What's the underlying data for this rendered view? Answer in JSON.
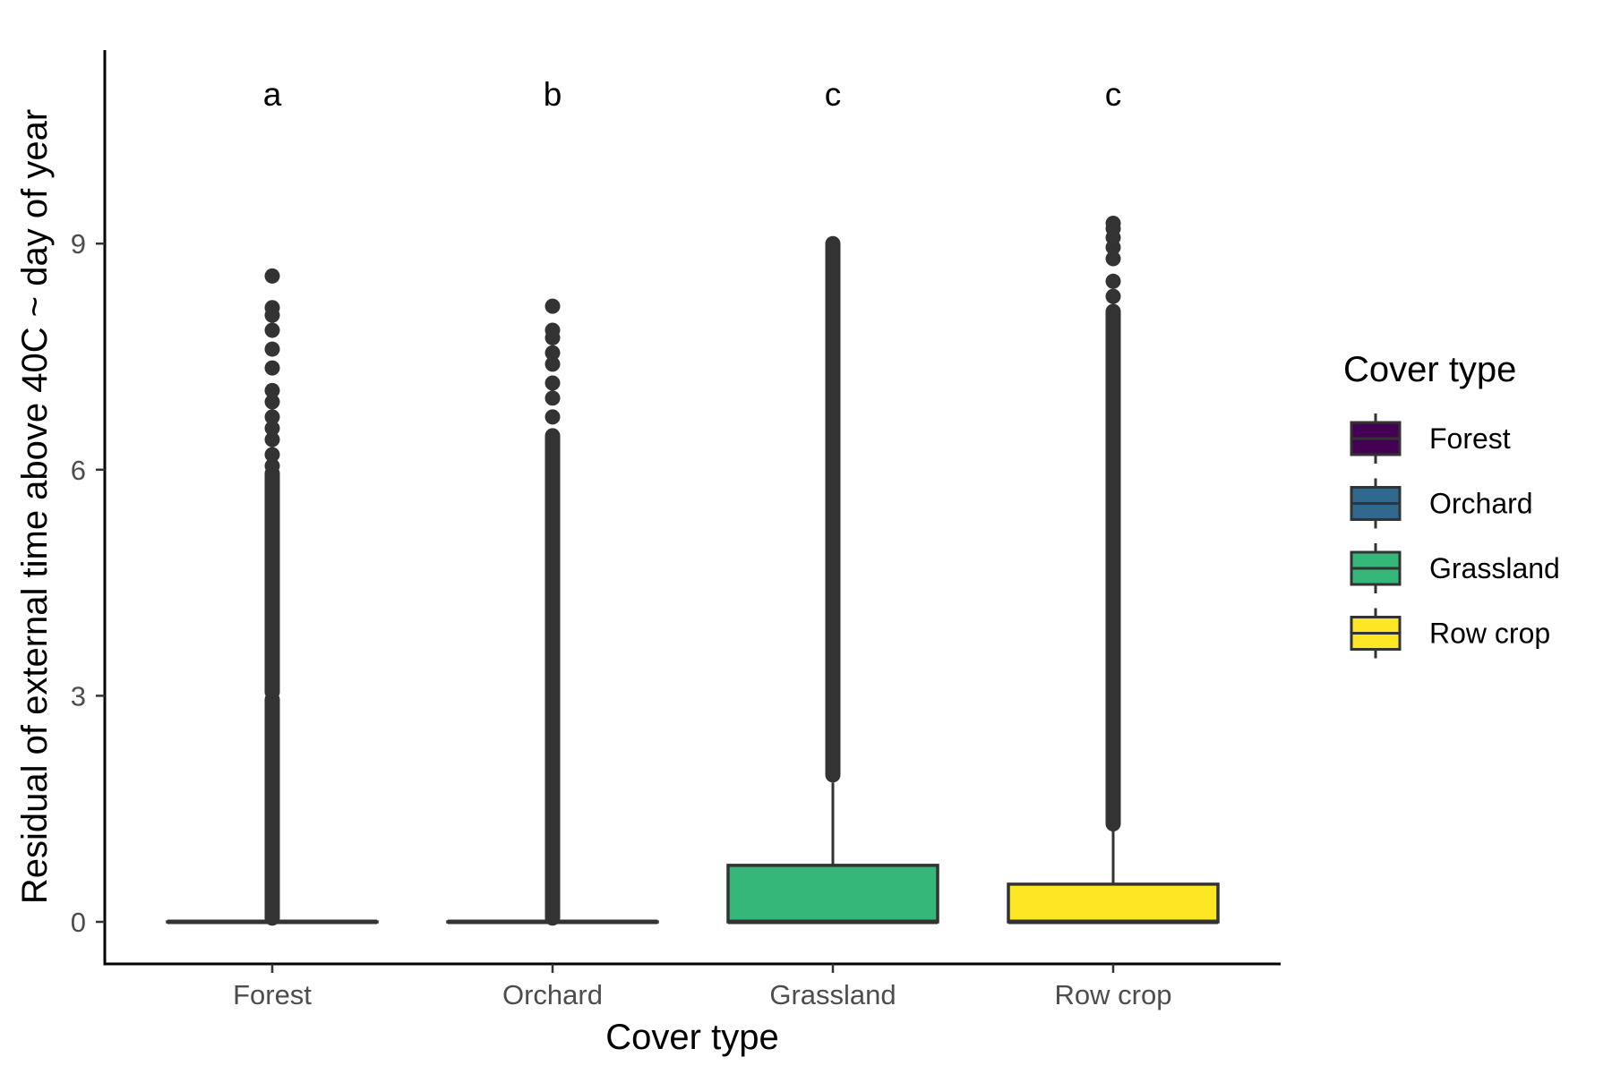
{
  "chart_data": {
    "type": "boxplot",
    "xlabel": "Cover type",
    "ylabel": "Residual of external time above 40C ~ day of year",
    "ylim": [
      -0.3,
      11.3
    ],
    "yticks": [
      0,
      3,
      6,
      9
    ],
    "categories": [
      "Forest",
      "Orchard",
      "Grassland",
      "Row crop"
    ],
    "significance_letters": [
      "a",
      "b",
      "c",
      "c"
    ],
    "legend": {
      "title": "Cover type",
      "position": "right",
      "items": [
        "Forest",
        "Orchard",
        "Grassland",
        "Row crop"
      ]
    },
    "colors": {
      "Forest": "#440154",
      "Orchard": "#31688e",
      "Grassland": "#35b779",
      "Row crop": "#fde725",
      "outline": "#333333"
    },
    "series": [
      {
        "name": "Forest",
        "box": {
          "min": 0,
          "q1": 0,
          "median": 0,
          "q3": 0,
          "max": 0
        },
        "outliers_continuous": [
          [
            0.05,
            2.95
          ],
          [
            3.05,
            5.95
          ]
        ],
        "outliers_points": [
          6.05,
          6.2,
          6.4,
          6.55,
          6.7,
          6.9,
          7.05,
          7.35,
          7.6,
          7.85,
          8.05,
          8.15,
          8.57
        ]
      },
      {
        "name": "Orchard",
        "box": {
          "min": 0,
          "q1": 0,
          "median": 0,
          "q3": 0,
          "max": 0
        },
        "outliers_continuous": [
          [
            0.05,
            6.45
          ]
        ],
        "outliers_points": [
          6.7,
          6.95,
          7.15,
          7.4,
          7.55,
          7.75,
          7.85,
          8.17
        ]
      },
      {
        "name": "Grassland",
        "box": {
          "min": 0,
          "q1": 0,
          "median": 0,
          "q3": 0.75,
          "max": 1.85
        },
        "outliers_continuous": [
          [
            1.95,
            9.0
          ]
        ],
        "outliers_points": []
      },
      {
        "name": "Row crop",
        "box": {
          "min": 0,
          "q1": 0,
          "median": 0,
          "q3": 0.5,
          "max": 1.3
        },
        "outliers_continuous": [
          [
            1.3,
            8.1
          ]
        ],
        "outliers_points": [
          8.3,
          8.5,
          8.8,
          8.95,
          9.08,
          9.2,
          9.27
        ]
      }
    ]
  }
}
